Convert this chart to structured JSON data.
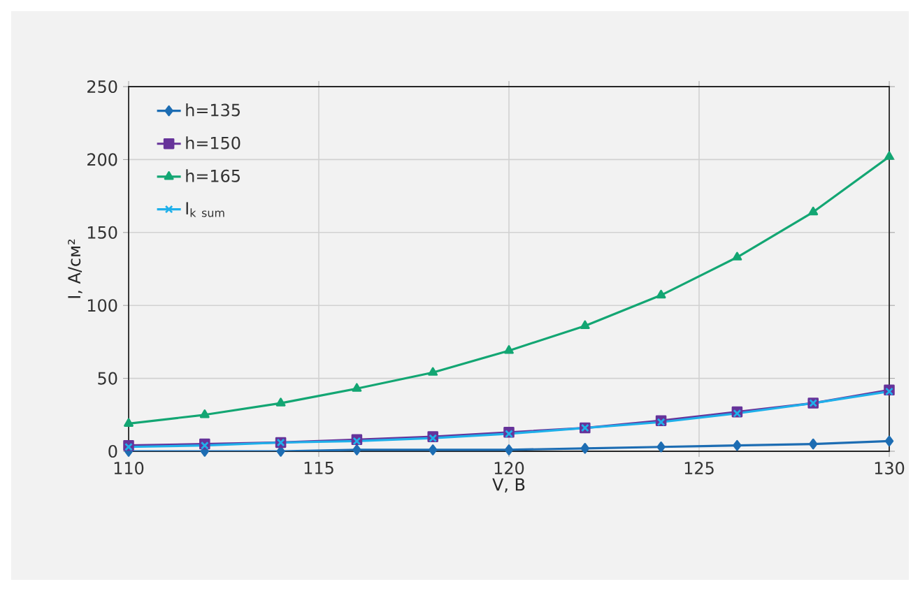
{
  "chart_data": {
    "type": "line",
    "xlabel": "V, B",
    "ylabel": "I, A/см²",
    "x": [
      110,
      112,
      114,
      116,
      118,
      120,
      122,
      124,
      126,
      128,
      130
    ],
    "xlim": [
      110,
      130
    ],
    "xticks": [
      110,
      115,
      120,
      125,
      130
    ],
    "ylim": [
      0,
      250
    ],
    "yticks": [
      0,
      50,
      100,
      150,
      200,
      250
    ],
    "grid": true,
    "legend": "top left",
    "line_style": "solid",
    "series": [
      {
        "name": "h=135",
        "color": "#1d6db3",
        "marker": "diamond",
        "values": [
          0,
          0,
          0,
          1,
          1,
          1,
          2,
          3,
          4,
          5,
          7
        ]
      },
      {
        "name": "h=150",
        "color": "#66339a",
        "marker": "square",
        "values": [
          4,
          5,
          6,
          8,
          10,
          13,
          16,
          21,
          27,
          33,
          42
        ]
      },
      {
        "name": "h=165",
        "color": "#13a673",
        "marker": "triangle",
        "values": [
          19,
          25,
          33,
          43,
          54,
          69,
          86,
          107,
          133,
          164,
          202
        ]
      },
      {
        "name": "\\mathrm{I}_{\\mathrm{k\\ sum}}",
        "color": "#1fb0ea",
        "marker": "cross",
        "values": [
          3,
          4,
          6,
          7,
          9,
          12,
          16,
          20,
          26,
          33,
          41
        ]
      }
    ]
  }
}
